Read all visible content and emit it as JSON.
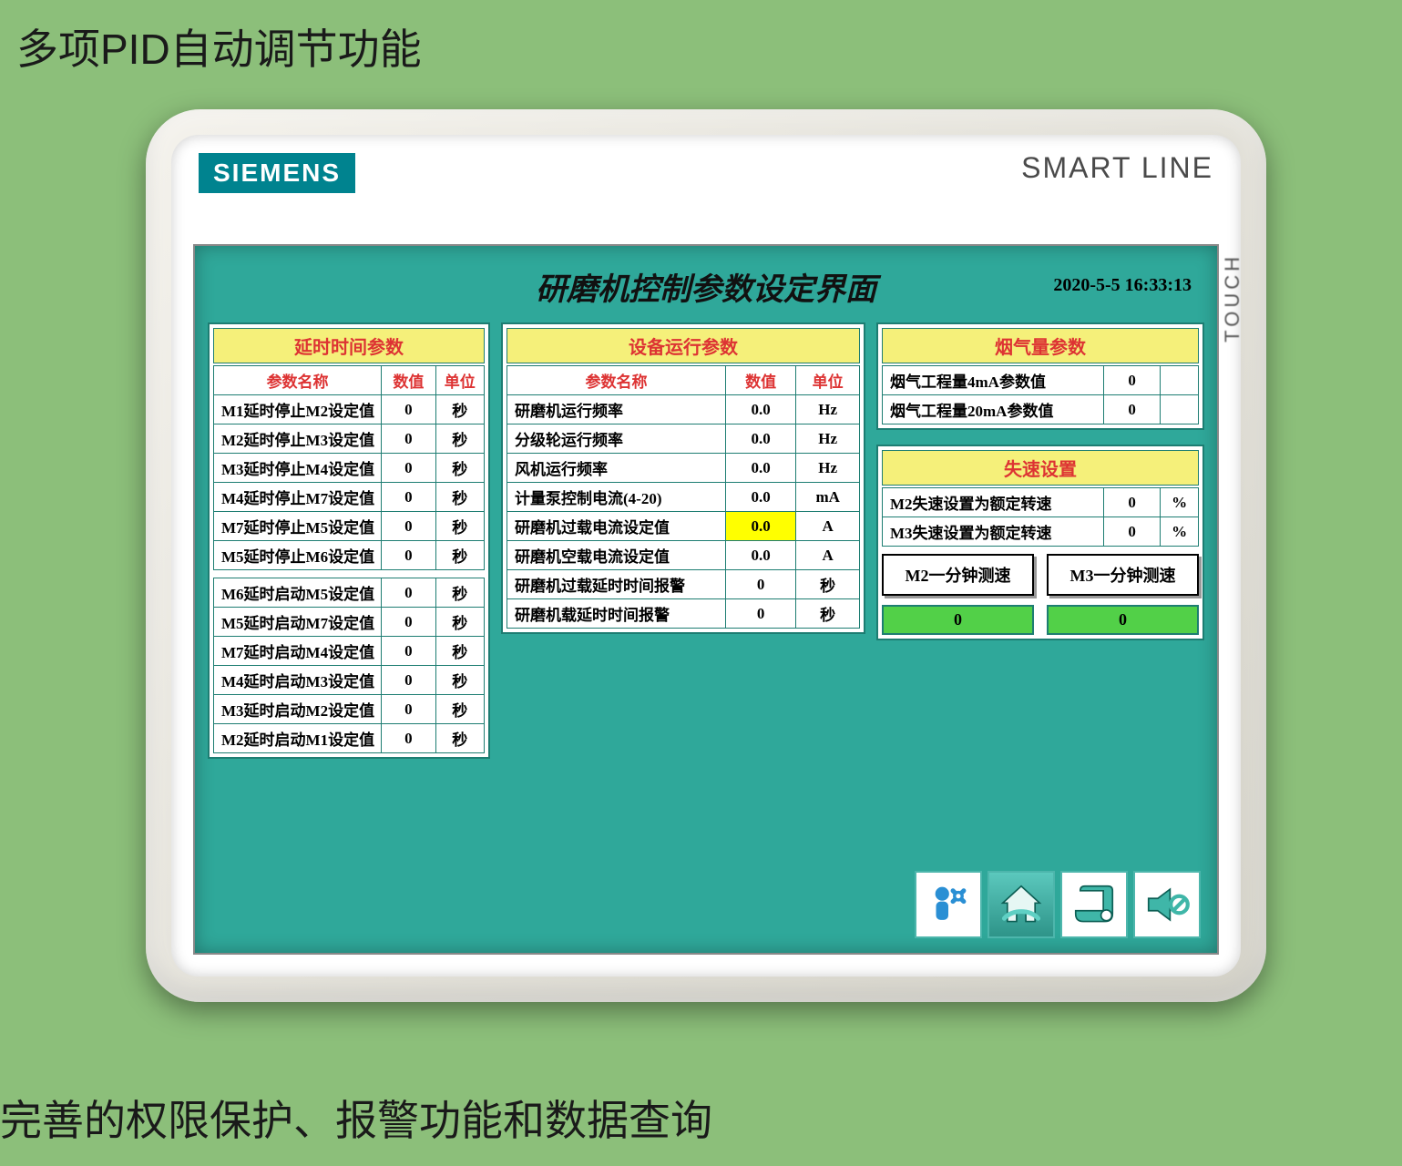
{
  "page": {
    "caption_top": "多项PID自动调节功能",
    "caption_bottom": "完善的权限保护、报警功能和数据查询"
  },
  "device": {
    "brand_left": "SIEMENS",
    "brand_right": "SMART LINE",
    "side_label": "TOUCH"
  },
  "screen": {
    "title": "研磨机控制参数设定界面",
    "timestamp": "2020-5-5 16:33:13",
    "colors": {
      "background": "#2fa89a",
      "panel_border": "#1d7d72",
      "header_bg": "#f5f07a",
      "header_fg": "#d33",
      "highlight_bg": "#ffff00",
      "readout_bg": "#52d048"
    }
  },
  "headers": {
    "name": "参数名称",
    "value": "数值",
    "unit": "单位"
  },
  "delay_panel": {
    "title": "延时时间参数",
    "stop_rows": [
      {
        "name": "M1延时停止M2设定值",
        "value": "0",
        "unit": "秒"
      },
      {
        "name": "M2延时停止M3设定值",
        "value": "0",
        "unit": "秒"
      },
      {
        "name": "M3延时停止M4设定值",
        "value": "0",
        "unit": "秒"
      },
      {
        "name": "M4延时停止M7设定值",
        "value": "0",
        "unit": "秒"
      },
      {
        "name": "M7延时停止M5设定值",
        "value": "0",
        "unit": "秒"
      },
      {
        "name": "M5延时停止M6设定值",
        "value": "0",
        "unit": "秒"
      }
    ],
    "start_rows": [
      {
        "name": "M6延时启动M5设定值",
        "value": "0",
        "unit": "秒"
      },
      {
        "name": "M5延时启动M7设定值",
        "value": "0",
        "unit": "秒"
      },
      {
        "name": "M7延时启动M4设定值",
        "value": "0",
        "unit": "秒"
      },
      {
        "name": "M4延时启动M3设定值",
        "value": "0",
        "unit": "秒"
      },
      {
        "name": "M3延时启动M2设定值",
        "value": "0",
        "unit": "秒"
      },
      {
        "name": "M2延时启动M1设定值",
        "value": "0",
        "unit": "秒"
      }
    ]
  },
  "run_panel": {
    "title": "设备运行参数",
    "rows": [
      {
        "name": "研磨机运行频率",
        "value": "0.0",
        "unit": "Hz",
        "hl": false
      },
      {
        "name": "分级轮运行频率",
        "value": "0.0",
        "unit": "Hz",
        "hl": false
      },
      {
        "name": "风机运行频率",
        "value": "0.0",
        "unit": "Hz",
        "hl": false
      },
      {
        "name": "计量泵控制电流(4-20)",
        "value": "0.0",
        "unit": "mA",
        "hl": false
      },
      {
        "name": "研磨机过载电流设定值",
        "value": "0.0",
        "unit": "A",
        "hl": true
      },
      {
        "name": "研磨机空载电流设定值",
        "value": "0.0",
        "unit": "A",
        "hl": false
      },
      {
        "name": "研磨机过载延时时间报警",
        "value": "0",
        "unit": "秒",
        "hl": false
      },
      {
        "name": "研磨机载延时时间报警",
        "value": "0",
        "unit": "秒",
        "hl": false
      }
    ]
  },
  "smoke_panel": {
    "title": "烟气量参数",
    "rows": [
      {
        "name": "烟气工程量4mA参数值",
        "value": "0",
        "unit": ""
      },
      {
        "name": "烟气工程量20mA参数值",
        "value": "0",
        "unit": ""
      }
    ]
  },
  "stall_panel": {
    "title": "失速设置",
    "rows": [
      {
        "name": "M2失速设置为额定转速",
        "value": "0",
        "unit": "%"
      },
      {
        "name": "M3失速设置为额定转速",
        "value": "0",
        "unit": "%"
      }
    ],
    "buttons": {
      "m2": "M2一分钟测速",
      "m3": "M3一分钟测速"
    },
    "readouts": {
      "m2": "0",
      "m3": "0"
    }
  },
  "nav": {
    "settings": "settings-icon",
    "home": "home-icon",
    "log": "log-icon",
    "alarm": "alarm-icon"
  }
}
